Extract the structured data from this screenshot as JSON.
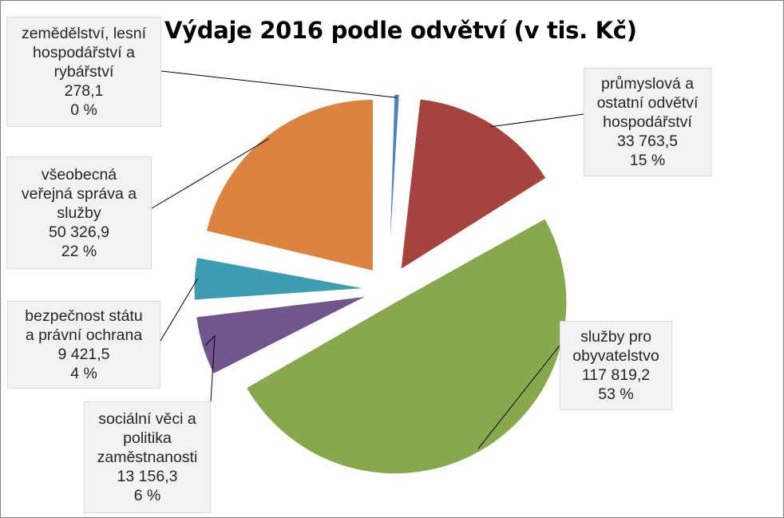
{
  "chart_data": {
    "type": "pie",
    "exploded": true,
    "title": "Výdaje 2016 podle odvětví (v tis. Kč)",
    "slices": [
      {
        "name": "zemědělství, lesní hospodářství a rybářství",
        "label_lines": [
          "zemědělství, lesní",
          "hospodářství a",
          "rybářství"
        ],
        "value": 278.1,
        "value_text": "278,1",
        "percent_text": "0 %",
        "color": "#4f81bd"
      },
      {
        "name": "průmyslová a ostatní odvětví hospodářství",
        "label_lines": [
          "průmyslová a",
          "ostatní odvětví",
          "hospodářství"
        ],
        "value": 33763.5,
        "value_text": "33 763,5",
        "percent_text": "15 %",
        "color": "#a5443f"
      },
      {
        "name": "služby pro obyvatelstvo",
        "label_lines": [
          "služby pro",
          "obyvatelstvo"
        ],
        "value": 117819.2,
        "value_text": "117 819,2",
        "percent_text": "53 %",
        "color": "#88a84e"
      },
      {
        "name": "sociální věci a politika zaměstnanosti",
        "label_lines": [
          "sociální věci a",
          "politika",
          "zaměstnanosti"
        ],
        "value": 13156.3,
        "value_text": "13 156,3",
        "percent_text": "6 %",
        "color": "#71568e"
      },
      {
        "name": "bezpečnost státu a právní ochrana",
        "label_lines": [
          "bezpečnost státu",
          "a právní ochrana"
        ],
        "value": 9421.5,
        "value_text": "9 421,5",
        "percent_text": "4 %",
        "color": "#3f9db2"
      },
      {
        "name": "všeobecná veřejná správa a služby",
        "label_lines": [
          "všeobecná",
          "veřejná správa a",
          "služby"
        ],
        "value": 50326.9,
        "value_text": "50 326,9",
        "percent_text": "22 %",
        "color": "#db843d"
      }
    ]
  }
}
